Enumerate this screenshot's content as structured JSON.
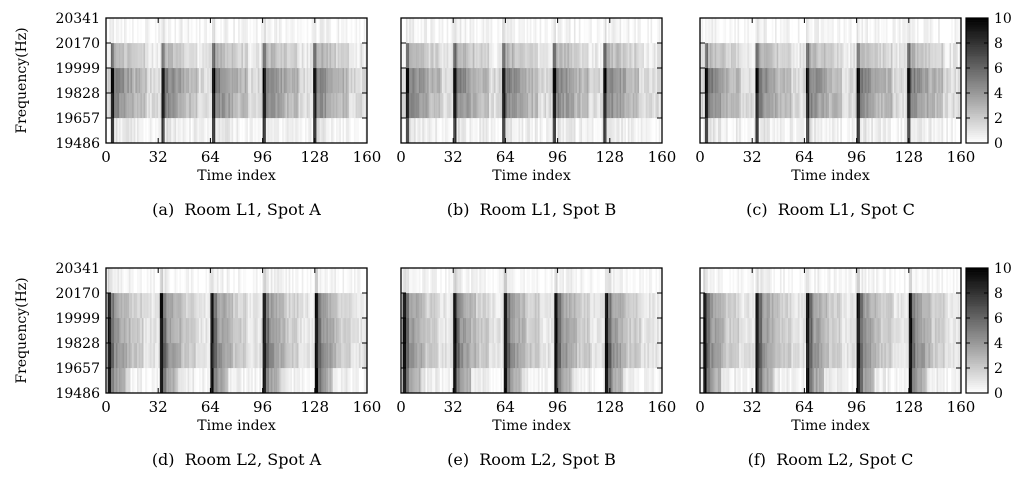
{
  "chart_data": [
    {
      "type": "heatmap",
      "caption": "(a)  Room L1, Spot A",
      "xlabel": "Time index",
      "ylabel": "Frequency(Hz)",
      "x_ticks": [
        "0",
        "32",
        "64",
        "96",
        "128",
        "160"
      ],
      "y_ticks": [
        "19486",
        "19657",
        "19828",
        "19999",
        "20170",
        "20341"
      ],
      "xlim": [
        0,
        160
      ],
      "ylim": [
        19486,
        20341
      ],
      "value_range": [
        0,
        10
      ],
      "profile": "bright-stripe-center",
      "stripe_starts": [
        3,
        34,
        65,
        96,
        127
      ]
    },
    {
      "type": "heatmap",
      "caption": "(b)  Room L1, Spot B",
      "xlabel": "Time index",
      "ylabel": "Frequency(Hz)",
      "x_ticks": [
        "0",
        "32",
        "64",
        "96",
        "128",
        "160"
      ],
      "y_ticks": [
        "19486",
        "19657",
        "19828",
        "19999",
        "20170",
        "20341"
      ],
      "xlim": [
        0,
        160
      ],
      "ylim": [
        19486,
        20341
      ],
      "value_range": [
        0,
        10
      ],
      "profile": "bright-stripe-center",
      "stripe_starts": [
        3,
        32,
        62,
        93,
        124
      ]
    },
    {
      "type": "heatmap",
      "caption": "(c)  Room L1, Spot C",
      "xlabel": "Time index",
      "ylabel": "Frequency(Hz)",
      "x_ticks": [
        "0",
        "32",
        "64",
        "96",
        "128",
        "160"
      ],
      "y_ticks": [
        "19486",
        "19657",
        "19828",
        "19999",
        "20170",
        "20341"
      ],
      "xlim": [
        0,
        160
      ],
      "ylim": [
        19486,
        20341
      ],
      "value_range": [
        0,
        10
      ],
      "colorbar": {
        "ticks": [
          "0",
          "2",
          "4",
          "6",
          "8",
          "10"
        ]
      },
      "profile": "bright-stripe-center",
      "stripe_starts": [
        3,
        34,
        65,
        96,
        127
      ]
    },
    {
      "type": "heatmap",
      "caption": "(d)  Room L2, Spot A",
      "xlabel": "Time index",
      "ylabel": "Frequency(Hz)",
      "x_ticks": [
        "0",
        "32",
        "64",
        "96",
        "128",
        "160"
      ],
      "y_ticks": [
        "19486",
        "19657",
        "19828",
        "19999",
        "20170",
        "20341"
      ],
      "xlim": [
        0,
        160
      ],
      "ylim": [
        19486,
        20341
      ],
      "value_range": [
        0,
        10
      ],
      "profile": "dark-stripe-full",
      "stripe_starts": [
        1,
        33,
        64,
        96,
        128
      ]
    },
    {
      "type": "heatmap",
      "caption": "(e)  Room L2, Spot B",
      "xlabel": "Time index",
      "ylabel": "Frequency(Hz)",
      "x_ticks": [
        "0",
        "32",
        "64",
        "96",
        "128",
        "160"
      ],
      "y_ticks": [
        "19486",
        "19657",
        "19828",
        "19999",
        "20170",
        "20341"
      ],
      "xlim": [
        0,
        160
      ],
      "ylim": [
        19486,
        20341
      ],
      "value_range": [
        0,
        10
      ],
      "profile": "dark-stripe-full",
      "stripe_starts": [
        1,
        32,
        63,
        94,
        125
      ]
    },
    {
      "type": "heatmap",
      "caption": "(f)  Room L2, Spot C",
      "xlabel": "Time index",
      "ylabel": "Frequency(Hz)",
      "x_ticks": [
        "0",
        "32",
        "64",
        "96",
        "128",
        "160"
      ],
      "y_ticks": [
        "19486",
        "19657",
        "19828",
        "19999",
        "20170",
        "20341"
      ],
      "xlim": [
        0,
        160
      ],
      "ylim": [
        19486,
        20341
      ],
      "value_range": [
        0,
        10
      ],
      "colorbar": {
        "ticks": [
          "0",
          "2",
          "4",
          "6",
          "8",
          "10"
        ]
      },
      "profile": "dark-stripe-full",
      "stripe_starts": [
        2,
        34,
        65,
        96,
        128
      ]
    }
  ]
}
